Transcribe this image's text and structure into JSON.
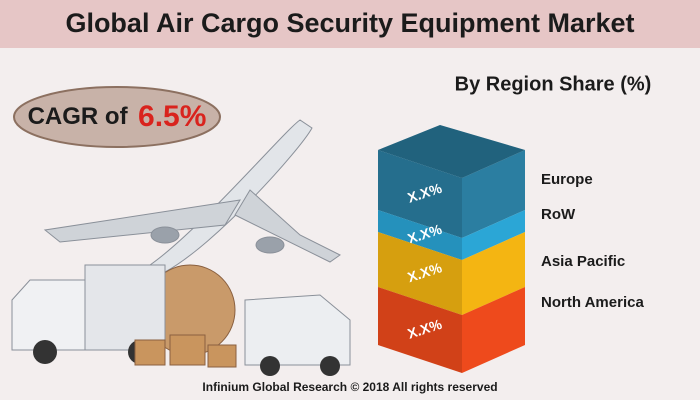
{
  "header": {
    "title": "Global Air Cargo Security Equipment Market"
  },
  "badge": {
    "prefix": "CAGR of",
    "value": "6.5%"
  },
  "panel": {
    "title": "By Region Share (%)",
    "segments": [
      {
        "label": "Europe",
        "value_label": "X.X%",
        "color": "#2b7ea1"
      },
      {
        "label": "RoW",
        "value_label": "X.X%",
        "color": "#2ba6d6"
      },
      {
        "label": "Asia Pacific",
        "value_label": "X.X%",
        "color": "#f4b512"
      },
      {
        "label": "North America",
        "value_label": "X.X%",
        "color": "#ee4a1c"
      }
    ]
  },
  "footer": "Infinium Global Research © 2018 All rights reserved"
}
